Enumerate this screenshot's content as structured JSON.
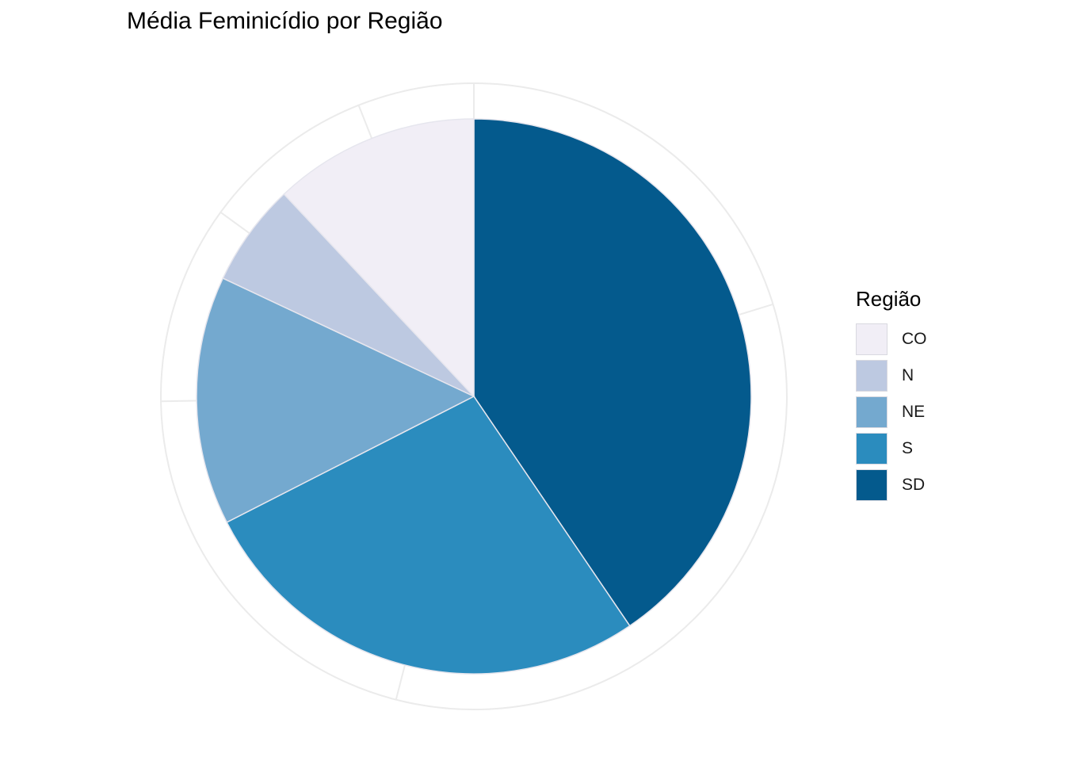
{
  "chart_data": {
    "type": "pie",
    "title": "Média Feminicídio por Região",
    "legend_title": "Região",
    "legend_position": "right",
    "slices": [
      {
        "name": "SD",
        "value": 40.5,
        "color": "#045A8D"
      },
      {
        "name": "S",
        "value": 27.0,
        "color": "#2B8CBE"
      },
      {
        "name": "NE",
        "value": 14.5,
        "color": "#74A9CF"
      },
      {
        "name": "N",
        "value": 6.0,
        "color": "#BDC9E1"
      },
      {
        "name": "CO",
        "value": 12.0,
        "color": "#F1EEF6"
      }
    ],
    "legend_order": [
      "CO",
      "N",
      "NE",
      "S",
      "SD"
    ]
  }
}
